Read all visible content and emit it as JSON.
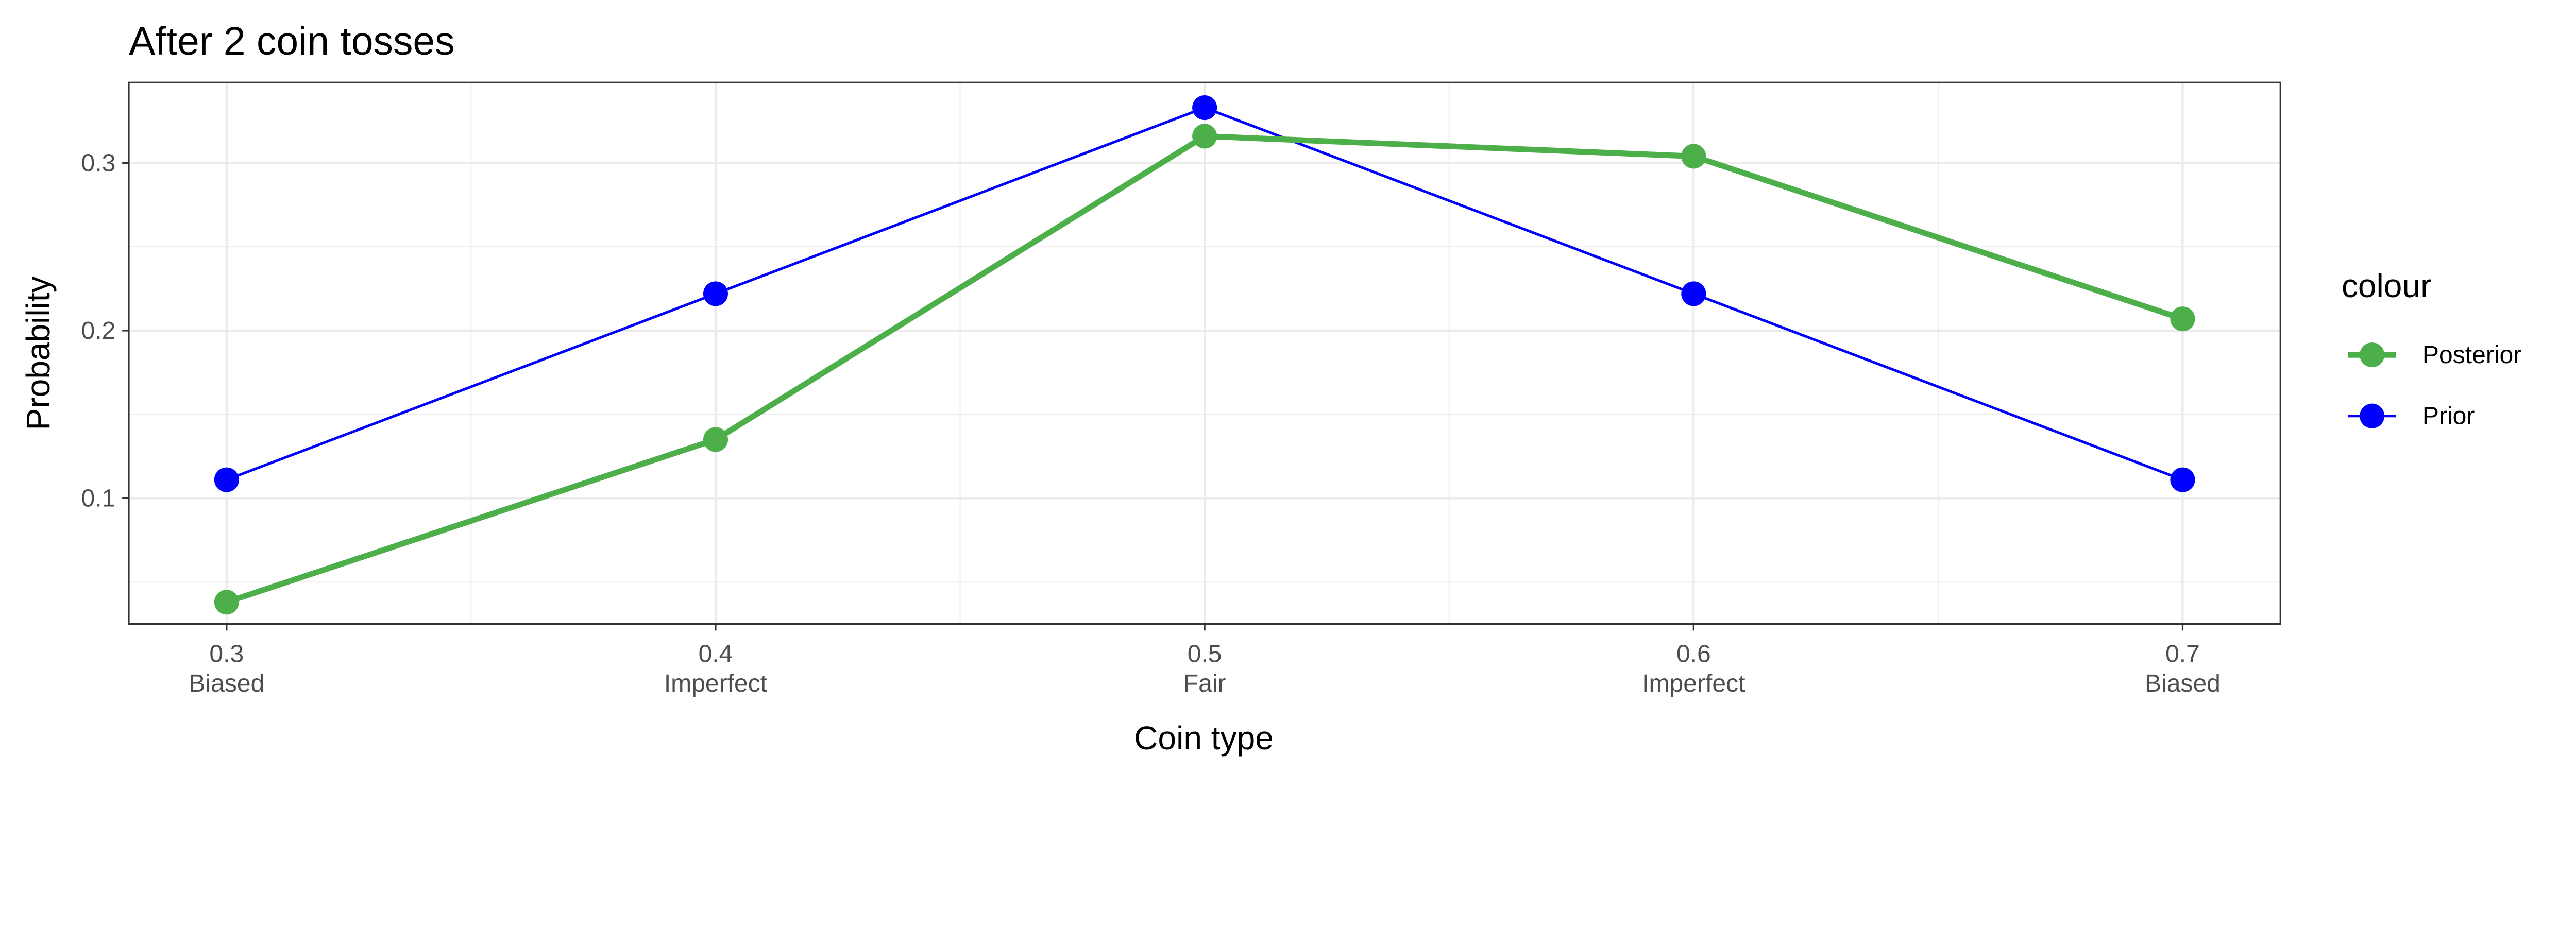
{
  "chart_data": {
    "type": "line",
    "title": "After 2 coin tosses",
    "xlabel": "Coin type",
    "ylabel": "Probability",
    "x": [
      0.3,
      0.4,
      0.5,
      0.6,
      0.7
    ],
    "x_tick_labels": [
      "0.3",
      "0.4",
      "0.5",
      "0.6",
      "0.7"
    ],
    "x_tick_sublabels": [
      "Biased",
      "Imperfect",
      "Fair",
      "Imperfect",
      "Biased"
    ],
    "y_ticks": [
      0.1,
      0.2,
      0.3
    ],
    "y_tick_labels": [
      "0.1",
      "0.2",
      "0.3"
    ],
    "xlim": [
      0.28,
      0.72
    ],
    "ylim": [
      0.025,
      0.348
    ],
    "grid": true,
    "legend": {
      "title": "colour",
      "placement": "right"
    },
    "series": [
      {
        "name": "Posterior",
        "color": "#4daf4a",
        "values": [
          0.038,
          0.135,
          0.316,
          0.304,
          0.207
        ]
      },
      {
        "name": "Prior",
        "color": "#0000ff",
        "values": [
          0.111,
          0.222,
          0.333,
          0.222,
          0.111
        ]
      }
    ]
  }
}
